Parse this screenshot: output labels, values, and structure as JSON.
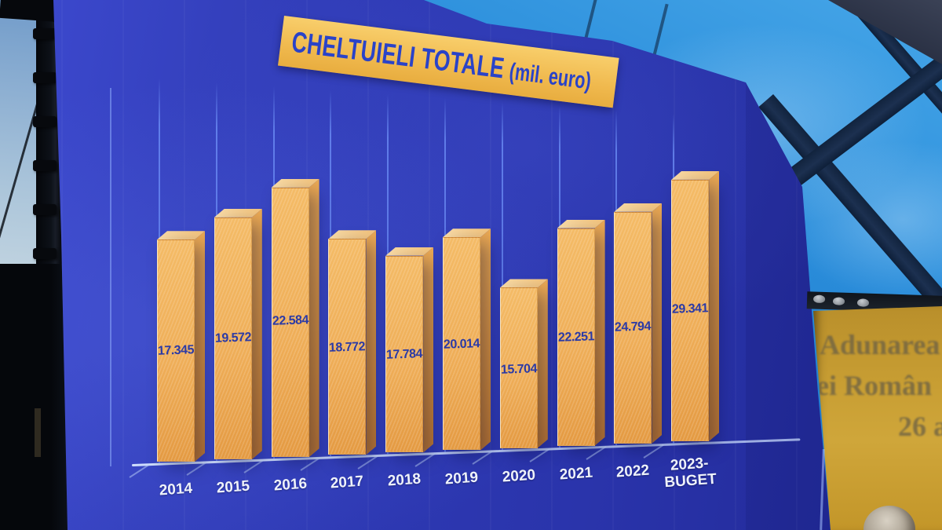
{
  "chart_data": {
    "type": "bar",
    "title": "CHELTUIELI TOTALE",
    "unit_label": "(mil. euro)",
    "categories": [
      "2014",
      "2015",
      "2016",
      "2017",
      "2018",
      "2019",
      "2020",
      "2021",
      "2022",
      "2023-BUGET"
    ],
    "tick_labels": [
      "2014",
      "2015",
      "2016",
      "2017",
      "2018",
      "2019",
      "2020",
      "2021",
      "2022",
      "2023-\nBUGET"
    ],
    "values": [
      17345,
      19572,
      22584,
      18772,
      17784,
      20014,
      15704,
      22251,
      24794,
      29341
    ],
    "value_labels": [
      "17.345",
      "19.572",
      "22.584",
      "18.772",
      "17.784",
      "20.014",
      "15.704",
      "22.251",
      "24.794",
      "29.341"
    ],
    "xlabel": "",
    "ylabel": "",
    "ylim": [
      0,
      30000
    ],
    "grid": "vertical-drop-lines",
    "legend": null,
    "colors": {
      "bar_front": "#f4bb66",
      "bar_side": "#cd883a",
      "bar_top": "#f2c27b",
      "value_label": "#2b3aa6",
      "axis": "#d7e4ff",
      "tick_label": "#eef2fa",
      "title_text": "#2a43c8",
      "title_bg": "#f0b94e"
    }
  },
  "side_banner": {
    "lines": [
      "Adunarea",
      "ției Român",
      "26 a"
    ],
    "bg": "#c89e33",
    "text_color": "#6e6244"
  }
}
